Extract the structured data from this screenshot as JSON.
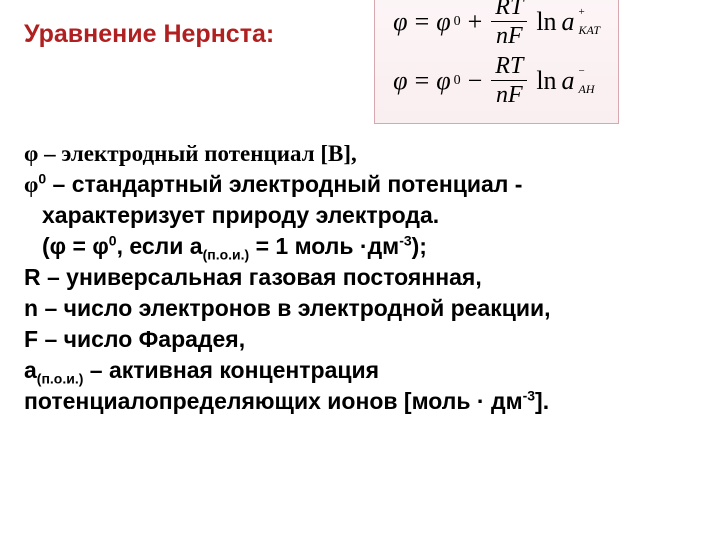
{
  "title": "Уравнение Нернста:",
  "equations": {
    "common": {
      "phi": "φ",
      "phi0": "φ",
      "sup0": "0",
      "RT": "RT",
      "nF": "nF",
      "ln": "ln",
      "a": "a"
    },
    "eq1": {
      "op": "+",
      "sub": "КАТ",
      "charge": "+"
    },
    "eq2": {
      "op": "−",
      "sub": "АН",
      "charge": "−"
    }
  },
  "defs": {
    "l1": "φ – электродный потенциал [В],",
    "l2a": "φ",
    "l2sup": "0",
    "l2b": "  – стандартный электродный потенциал -",
    "l3": "характеризует природу электрода.",
    "l4a": "(φ = φ",
    "l4sup": "0",
    "l4b": ", если а",
    "l4sub": "(п.о.и.)",
    "l4c": " = 1 моль ·дм",
    "l4sup2": "-3",
    "l4d": ");",
    "l5": "R – универсальная газовая постоянная,",
    "l6": "n – число электронов в электродной реакции,",
    "l7": "F – число Фарадея,",
    "l8a": "а",
    "l8sub": "(п.о.и.)",
    "l8b": " – активная концентрация",
    "l9a": "потенциалопределяющих ионов  [моль · дм",
    "l9sup": "-3",
    "l9b": "]."
  },
  "style": {
    "title_color": "#b02020",
    "box_bg_top": "#fdf6f7",
    "box_bg_bottom": "#f9eef0",
    "box_border": "#d8a8b0",
    "text_color": "#000000"
  }
}
